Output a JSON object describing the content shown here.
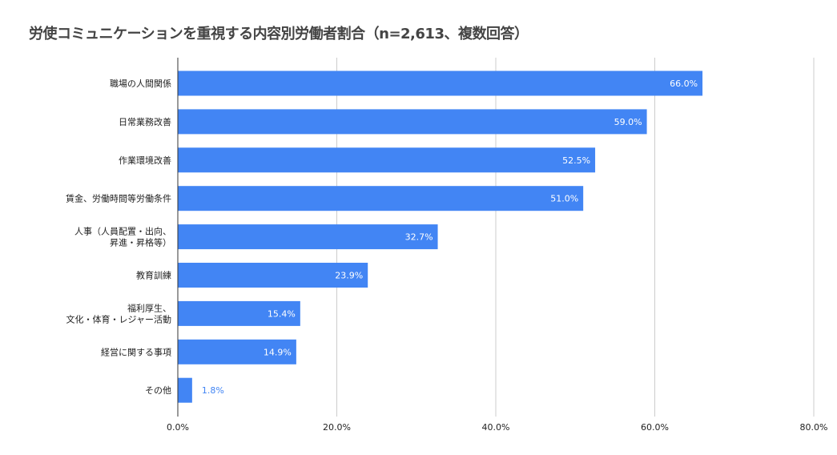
{
  "chart_data": {
    "type": "bar",
    "orientation": "horizontal",
    "title": "労使コミュニケーションを重視する内容別労働者割合（n=2,613、複数回答）",
    "categories": [
      [
        "職場の人間関係"
      ],
      [
        "日常業務改善"
      ],
      [
        "作業環境改善"
      ],
      [
        "賃金、労働時間等労働条件"
      ],
      [
        "人事（人員配置・出向、",
        "昇進・昇格等）"
      ],
      [
        "教育訓練"
      ],
      [
        "福利厚生、",
        "文化・体育・レジャー活動"
      ],
      [
        "経営に関する事項"
      ],
      [
        "その他"
      ]
    ],
    "values": [
      66.0,
      59.0,
      52.5,
      51.0,
      32.7,
      23.9,
      15.4,
      14.9,
      1.8
    ],
    "data_labels": [
      "66.0%",
      "59.0%",
      "52.5%",
      "51.0%",
      "32.7%",
      "23.9%",
      "15.4%",
      "14.9%",
      "1.8%"
    ],
    "xlim": [
      0,
      80
    ],
    "x_ticks": [
      0,
      20,
      40,
      60,
      80
    ],
    "x_tick_labels": [
      "0.0%",
      "20.0%",
      "40.0%",
      "60.0%",
      "80.0%"
    ],
    "grid": true,
    "legend": "none",
    "bar_color": "#4285f4"
  }
}
